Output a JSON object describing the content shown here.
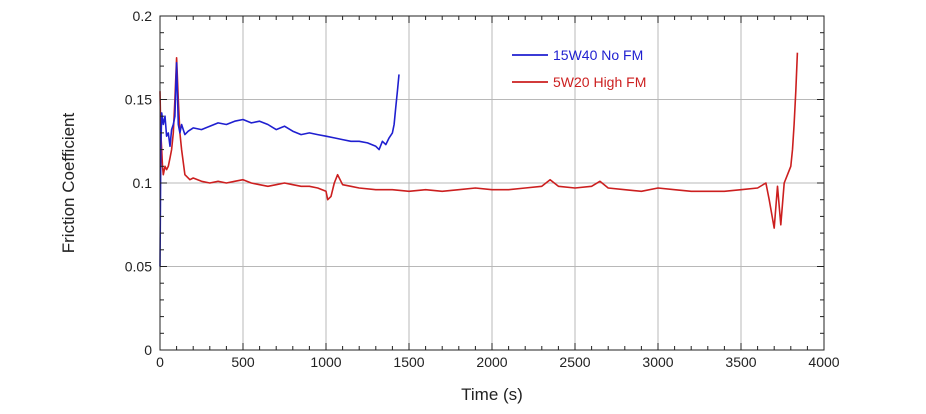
{
  "chart_data": {
    "type": "line",
    "title": "",
    "xlabel": "Time (s)",
    "ylabel": "Friction Coefficient",
    "xlim": [
      0,
      4000
    ],
    "ylim": [
      0,
      0.2
    ],
    "xticks": [
      0,
      500,
      1000,
      1500,
      2000,
      2500,
      3000,
      3500,
      4000
    ],
    "yticks": [
      0,
      0.05,
      0.1,
      0.15,
      0.2
    ],
    "xtick_labels": [
      "0",
      "500",
      "1000",
      "1500",
      "2000",
      "2500",
      "3000",
      "3500",
      "4000"
    ],
    "ytick_labels": [
      "0",
      "0.05",
      "0.1",
      "0.15",
      "0.2"
    ],
    "grid": true,
    "minor_ticks": true,
    "legend": "top-right",
    "series": [
      {
        "name": "15W40 No FM",
        "color": "#1f1fd0",
        "x": [
          0,
          5,
          10,
          20,
          30,
          40,
          50,
          60,
          70,
          80,
          90,
          100,
          110,
          120,
          130,
          150,
          170,
          200,
          250,
          300,
          350,
          400,
          450,
          500,
          550,
          600,
          650,
          700,
          750,
          800,
          850,
          900,
          950,
          1000,
          1050,
          1100,
          1150,
          1200,
          1250,
          1300,
          1320,
          1340,
          1360,
          1380,
          1400,
          1410,
          1420,
          1430,
          1440
        ],
        "y": [
          0.05,
          0.12,
          0.142,
          0.135,
          0.14,
          0.128,
          0.13,
          0.122,
          0.132,
          0.135,
          0.14,
          0.172,
          0.135,
          0.13,
          0.135,
          0.129,
          0.131,
          0.133,
          0.132,
          0.134,
          0.136,
          0.135,
          0.137,
          0.138,
          0.136,
          0.137,
          0.135,
          0.132,
          0.134,
          0.131,
          0.129,
          0.13,
          0.129,
          0.128,
          0.127,
          0.126,
          0.125,
          0.125,
          0.124,
          0.122,
          0.12,
          0.125,
          0.123,
          0.127,
          0.13,
          0.135,
          0.145,
          0.155,
          0.165
        ]
      },
      {
        "name": "5W20 High FM",
        "color": "#cc1f1f",
        "x": [
          0,
          5,
          10,
          15,
          20,
          30,
          40,
          50,
          60,
          70,
          80,
          90,
          100,
          110,
          120,
          130,
          150,
          180,
          200,
          250,
          300,
          350,
          400,
          450,
          500,
          550,
          600,
          650,
          700,
          750,
          800,
          850,
          900,
          950,
          1000,
          1010,
          1030,
          1050,
          1070,
          1100,
          1150,
          1200,
          1300,
          1400,
          1500,
          1600,
          1700,
          1800,
          1900,
          2000,
          2100,
          2200,
          2300,
          2350,
          2400,
          2500,
          2600,
          2650,
          2700,
          2800,
          2900,
          3000,
          3100,
          3200,
          3300,
          3400,
          3500,
          3600,
          3650,
          3670,
          3700,
          3720,
          3740,
          3760,
          3780,
          3800,
          3810,
          3820,
          3830,
          3840
        ],
        "y": [
          0.155,
          0.13,
          0.12,
          0.11,
          0.105,
          0.11,
          0.108,
          0.11,
          0.115,
          0.12,
          0.13,
          0.15,
          0.175,
          0.15,
          0.13,
          0.12,
          0.105,
          0.102,
          0.103,
          0.101,
          0.1,
          0.101,
          0.1,
          0.101,
          0.102,
          0.1,
          0.099,
          0.098,
          0.099,
          0.1,
          0.099,
          0.098,
          0.098,
          0.097,
          0.095,
          0.09,
          0.092,
          0.1,
          0.105,
          0.099,
          0.098,
          0.097,
          0.096,
          0.096,
          0.095,
          0.096,
          0.095,
          0.096,
          0.097,
          0.096,
          0.096,
          0.097,
          0.098,
          0.102,
          0.098,
          0.097,
          0.098,
          0.101,
          0.097,
          0.096,
          0.095,
          0.097,
          0.096,
          0.095,
          0.095,
          0.095,
          0.096,
          0.097,
          0.1,
          0.09,
          0.073,
          0.098,
          0.075,
          0.1,
          0.105,
          0.11,
          0.12,
          0.135,
          0.155,
          0.178
        ]
      }
    ]
  }
}
